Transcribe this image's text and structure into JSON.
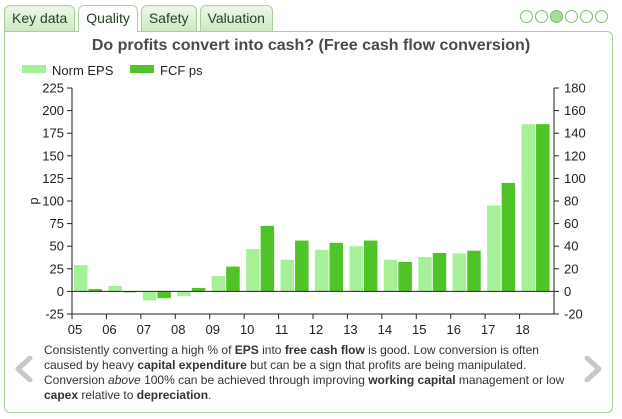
{
  "tabs": [
    {
      "label": "Key data",
      "active": false
    },
    {
      "label": "Quality",
      "active": true
    },
    {
      "label": "Safety",
      "active": false
    },
    {
      "label": "Valuation",
      "active": false
    }
  ],
  "pager": {
    "total": 6,
    "active_index": 2
  },
  "colors": {
    "norm_eps": "#a6f098",
    "fcf_ps": "#4ec426",
    "tab_border": "#a9d19a",
    "dot_border": "#7cc16a",
    "arrow": "#c8c8c8"
  },
  "icons": {
    "prev": "chevron-left-icon",
    "next": "chevron-right-icon"
  },
  "caption": [
    {
      "t": "Consistently converting a high % of ",
      "s": "n"
    },
    {
      "t": "EPS",
      "s": "b"
    },
    {
      "t": " into ",
      "s": "n"
    },
    {
      "t": "free cash flow",
      "s": "b"
    },
    {
      "t": " is good. Low conversion is often caused by heavy ",
      "s": "n"
    },
    {
      "t": "capital expenditure",
      "s": "b"
    },
    {
      "t": " but can be a sign that profits are being manipulated. Conversion ",
      "s": "n"
    },
    {
      "t": "above",
      "s": "i"
    },
    {
      "t": " 100% can be achieved through improving ",
      "s": "n"
    },
    {
      "t": "working capital",
      "s": "b"
    },
    {
      "t": " management or low ",
      "s": "n"
    },
    {
      "t": "capex",
      "s": "b"
    },
    {
      "t": " relative to ",
      "s": "n"
    },
    {
      "t": "depreciation",
      "s": "b"
    },
    {
      "t": ".",
      "s": "n"
    }
  ],
  "chart_data": {
    "type": "bar",
    "title": "Do profits convert into cash? (Free cash flow conversion)",
    "categories": [
      "05",
      "06",
      "07",
      "08",
      "09",
      "10",
      "11",
      "12",
      "13",
      "14",
      "15",
      "16",
      "17",
      "18"
    ],
    "ylabel": "p",
    "ylim": [
      -25,
      225
    ],
    "yticks": [
      -25,
      0,
      25,
      50,
      75,
      100,
      125,
      150,
      175,
      200,
      225
    ],
    "y2lim": [
      -20,
      180
    ],
    "y2ticks": [
      -20,
      0,
      20,
      40,
      60,
      80,
      100,
      120,
      140,
      160,
      180
    ],
    "legend_position": "top-left",
    "grid": false,
    "series": [
      {
        "name": "Norm EPS",
        "axis": "left",
        "values": [
          29,
          6,
          -10,
          -5,
          17,
          47,
          35,
          46,
          50,
          35,
          38,
          42,
          95,
          185
        ]
      },
      {
        "name": "FCF ps",
        "axis": "right",
        "values": [
          2,
          0,
          -6,
          3,
          22,
          58,
          45,
          43,
          45,
          26,
          34,
          36,
          96,
          148
        ]
      }
    ]
  }
}
